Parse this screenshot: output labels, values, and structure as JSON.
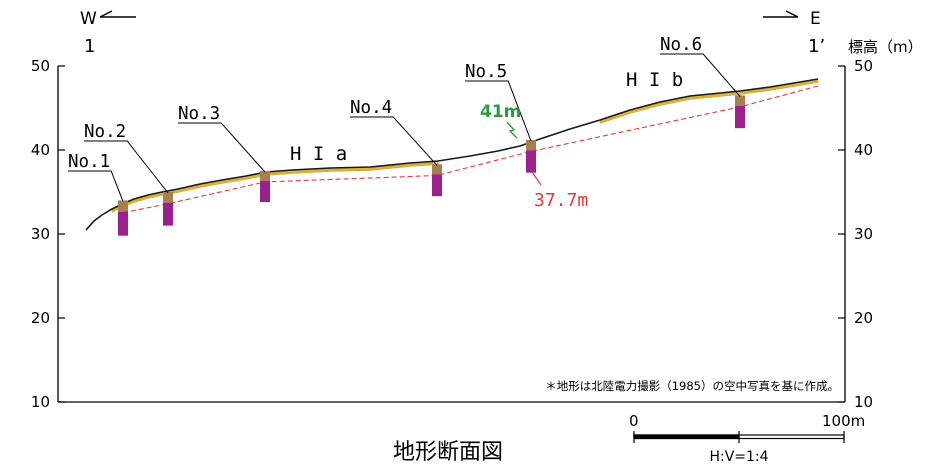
{
  "orientation": {
    "west_letter": "W",
    "east_letter": "E",
    "left_end_label": "1",
    "right_end_label": "1’"
  },
  "axis": {
    "y_title": "標高（m）",
    "ticks": [
      "50",
      "40",
      "30",
      "20",
      "10"
    ],
    "ylim": [
      10,
      50
    ]
  },
  "boreholes": [
    {
      "label": "No.1",
      "surface_m": 34.0,
      "bottom_m": 29.8
    },
    {
      "label": "No.2",
      "surface_m": 35.0,
      "bottom_m": 31.0
    },
    {
      "label": "No.3",
      "surface_m": 37.5,
      "bottom_m": 33.8
    },
    {
      "label": "No.4",
      "surface_m": 38.3,
      "bottom_m": 34.5
    },
    {
      "label": "No.5",
      "surface_m": 41.2,
      "bottom_m": 37.3
    },
    {
      "label": "No.6",
      "surface_m": 46.5,
      "bottom_m": 42.6
    }
  ],
  "terrace_labels": {
    "left": "H I a",
    "right": "H I b"
  },
  "annotations": {
    "surface_elev": "41m",
    "base_elev": "37.7m",
    "note": "＊地形は北陸電力撮影（1985）の空中写真を基に作成。"
  },
  "scale_bar": {
    "start": "0",
    "end": "100m",
    "ratio": "H:V=1:4"
  },
  "title": "地形断面図",
  "colors": {
    "ground_line": "#1a1a1a",
    "terrace_deposit": "#d8b23a",
    "borehole_upper": "#a87e4e",
    "borehole_lower": "#9b1f8c",
    "base_line": "#e83a3a",
    "label_green": "#2f9a3c",
    "label_red": "#e23a3a"
  }
}
